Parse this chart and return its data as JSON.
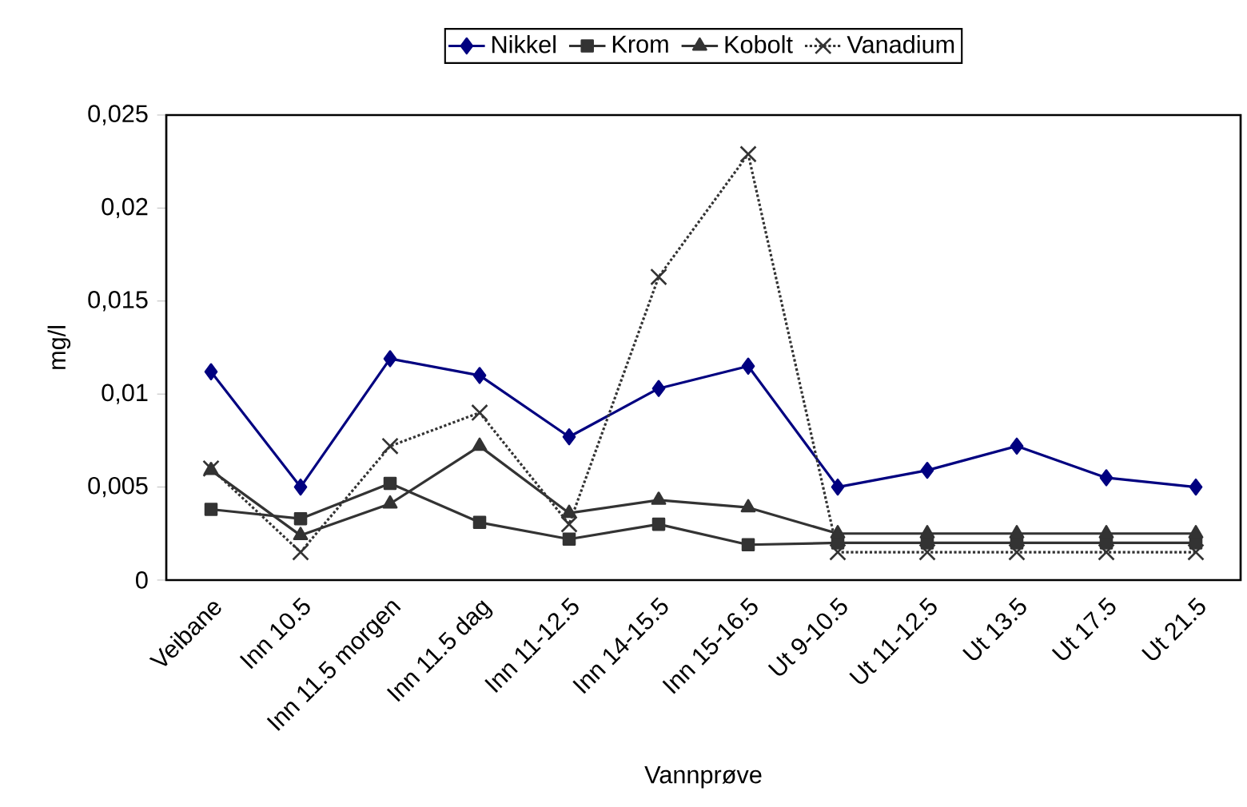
{
  "chart_data": {
    "type": "line",
    "xlabel": "Vannprøve",
    "ylabel": "mg/l",
    "categories": [
      "Veibane",
      "Inn 10.5",
      "Inn 11.5 morgen",
      "Inn 11.5 dag",
      "Inn 11-12.5",
      "Inn 14-15.5",
      "Inn 15-16.5",
      "Ut 9-10.5",
      "Ut 11-12.5",
      "Ut 13.5",
      "Ut 17.5",
      "Ut 21.5"
    ],
    "series": [
      {
        "name": "Nikkel",
        "color": "#000080",
        "marker": "diamond",
        "line_style": "solid",
        "values": [
          0.0112,
          0.005,
          0.0119,
          0.011,
          0.0077,
          0.0103,
          0.0115,
          0.005,
          0.0059,
          0.0072,
          0.0055,
          0.005
        ]
      },
      {
        "name": "Krom",
        "color": "#333333",
        "marker": "square",
        "line_style": "solid",
        "values": [
          0.0038,
          0.0033,
          0.0052,
          0.0031,
          0.0022,
          0.003,
          0.0019,
          0.002,
          0.002,
          0.002,
          0.002,
          0.002
        ]
      },
      {
        "name": "Kobolt",
        "color": "#333333",
        "marker": "triangle",
        "line_style": "solid",
        "values": [
          0.0059,
          0.0024,
          0.0041,
          0.0072,
          0.0036,
          0.0043,
          0.0039,
          0.0025,
          0.0025,
          0.0025,
          0.0025,
          0.0025
        ]
      },
      {
        "name": "Vanadium",
        "color": "#333333",
        "marker": "cross",
        "line_style": "dotted",
        "values": [
          0.006,
          0.0015,
          0.0072,
          0.009,
          0.003,
          0.0163,
          0.0229,
          0.0015,
          0.0015,
          0.0015,
          0.0015,
          0.0015
        ]
      }
    ],
    "ylim": [
      0,
      0.025
    ],
    "yticks": [
      0,
      {
        "value": 0.005,
        "label": "0,005"
      },
      {
        "value": 0.01,
        "label": "0,01"
      },
      {
        "value": 0.015,
        "label": "0,015"
      },
      {
        "value": 0.02,
        "label": "0,02"
      },
      {
        "value": 0.025,
        "label": "0,025"
      }
    ],
    "legend": "top",
    "grid": false
  }
}
